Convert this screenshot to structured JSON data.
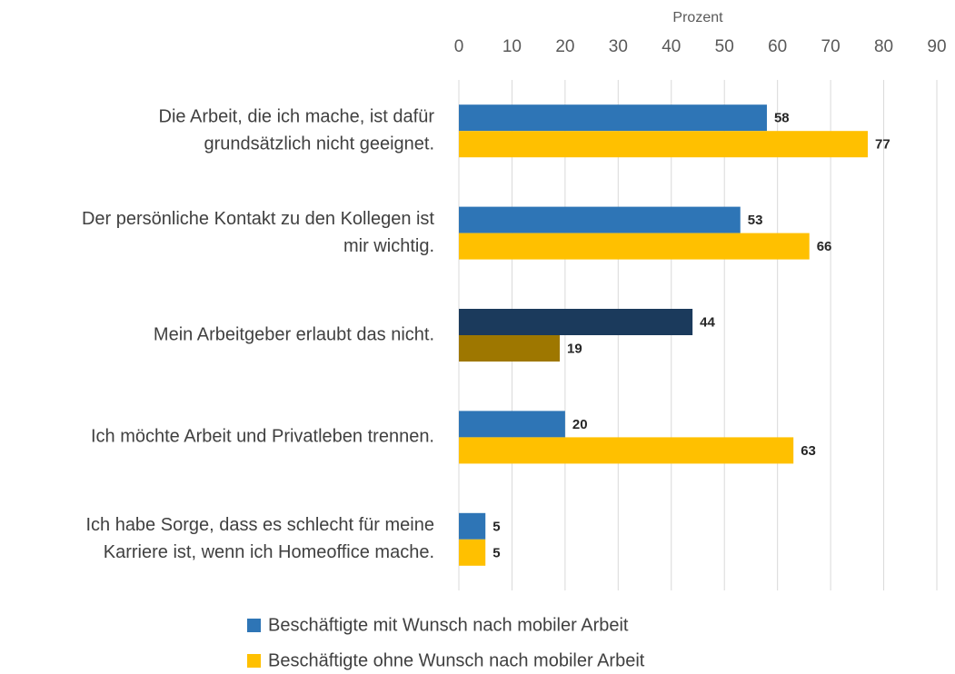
{
  "chart_data": {
    "type": "hbar",
    "x_label": "Prozent",
    "categories": [
      [
        "Die Arbeit, die ich mache, ist dafür",
        "grundsätzlich nicht geeignet."
      ],
      [
        "Der persönliche Kontakt zu den Kollegen ist",
        "mir wichtig."
      ],
      [
        "Mein Arbeitgeber erlaubt das nicht."
      ],
      [
        "Ich möchte Arbeit und Privatleben trennen."
      ],
      [
        "Ich habe Sorge, dass es schlecht für meine",
        "Karriere ist, wenn ich Homeoffice mache."
      ]
    ],
    "series": [
      {
        "name": "Beschäftigte mit Wunsch nach mobiler Arbeit",
        "color": "#2e75b6",
        "colors": [
          "#2e75b6",
          "#2e75b6",
          "#1b3a5c",
          "#2e75b6",
          "#2e75b6"
        ],
        "values": [
          58,
          53,
          44,
          20,
          5
        ]
      },
      {
        "name": "Beschäftigte ohne Wunsch nach mobiler Arbeit",
        "color": "#ffc000",
        "colors": [
          "#ffc000",
          "#ffc000",
          "#9e7700",
          "#ffc000",
          "#ffc000"
        ],
        "values": [
          77,
          66,
          19,
          63,
          5
        ]
      }
    ],
    "xlim": [
      0,
      90
    ],
    "xticks": [
      0,
      10,
      20,
      30,
      40,
      50,
      60,
      70,
      80,
      90
    ],
    "grid": true
  }
}
